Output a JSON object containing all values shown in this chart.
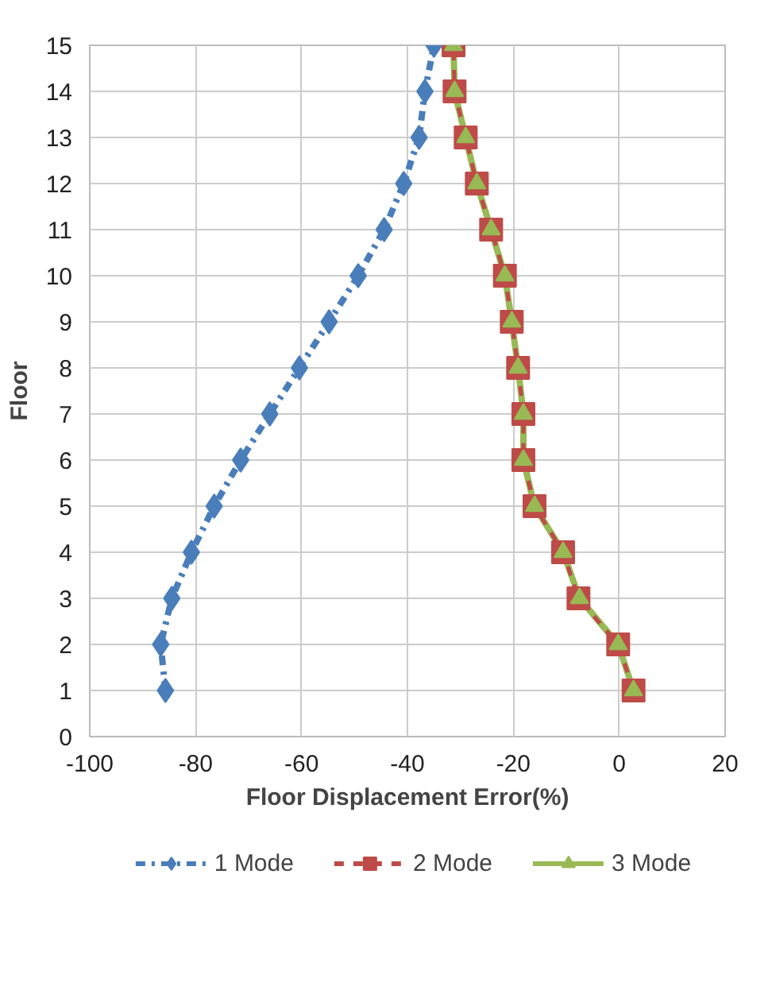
{
  "chart_data": {
    "type": "line",
    "xlabel": "Floor Displacement Error(%)",
    "ylabel": "Floor",
    "xlim": [
      -100,
      20
    ],
    "xticks": [
      -100,
      -80,
      -60,
      -40,
      -20,
      0,
      20
    ],
    "ylim": [
      0,
      15
    ],
    "yticks": [
      0,
      1,
      2,
      3,
      4,
      5,
      6,
      7,
      8,
      9,
      10,
      11,
      12,
      13,
      14,
      15
    ],
    "grid": true,
    "legend": "bottom",
    "series": [
      {
        "name": "1 Mode",
        "color": "#4a7ebb",
        "marker": "diamond",
        "line_style": "dashdot",
        "x": [
          -85.7,
          -86.6,
          -84.5,
          -80.8,
          -76.5,
          -71.5,
          -66,
          -60.4,
          -54.8,
          -49.3,
          -44.4,
          -40.7,
          -37.8,
          -36.7,
          -35
        ],
        "values": [
          1,
          2,
          3,
          4,
          5,
          6,
          7,
          8,
          9,
          10,
          11,
          12,
          13,
          14,
          15
        ]
      },
      {
        "name": "2 Mode",
        "color": "#be4b48",
        "marker": "square",
        "line_style": "dashed",
        "x": [
          2.7,
          -0.2,
          -7.7,
          -10.6,
          -16,
          -18.1,
          -18.1,
          -19.1,
          -20.3,
          -21.6,
          -24.2,
          -26.9,
          -29,
          -31.1,
          -31.3
        ],
        "values": [
          1,
          2,
          3,
          4,
          5,
          6,
          7,
          8,
          9,
          10,
          11,
          12,
          13,
          14,
          15
        ]
      },
      {
        "name": "3 Mode",
        "color": "#98b954",
        "marker": "triangle",
        "line_style": "solid",
        "x": [
          2.7,
          -0.2,
          -7.5,
          -10.6,
          -16,
          -18.1,
          -18.1,
          -19.1,
          -20.3,
          -21.6,
          -24.2,
          -26.9,
          -29,
          -31.1,
          -31.3
        ],
        "values": [
          1,
          2,
          3,
          4,
          5,
          6,
          7,
          8,
          9,
          10,
          11,
          12,
          13,
          14,
          15
        ]
      }
    ]
  }
}
